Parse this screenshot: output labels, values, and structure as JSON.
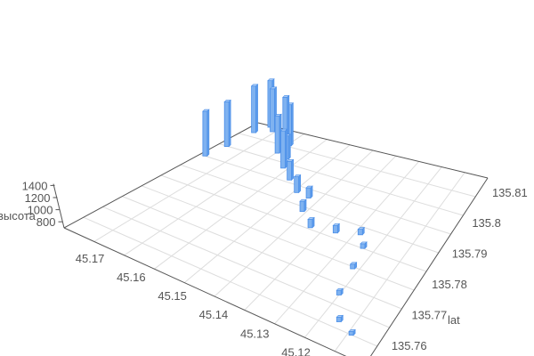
{
  "chart_data": {
    "type": "bar3d",
    "title": "",
    "x_axis": {
      "label": "",
      "ticks": [
        "45.17",
        "45.16",
        "45.15",
        "45.14",
        "45.13",
        "45.12"
      ],
      "range": [
        45.105,
        45.178
      ]
    },
    "y_axis": {
      "label": "lat",
      "ticks": [
        "135.76",
        "135.77",
        "135.78",
        "135.79",
        "135.8",
        "135.81"
      ],
      "range": [
        135.753,
        135.814
      ]
    },
    "z_axis": {
      "label": "высота",
      "ticks": [
        "800",
        "1000",
        "1200",
        "1400"
      ],
      "range": [
        700,
        1500
      ]
    },
    "grid": true,
    "bar_color": "#7fb2f0",
    "bar_edge_color": "#4a8ee8",
    "points": [
      {
        "x": 45.1765,
        "y": 135.7957,
        "z": 1438
      },
      {
        "x": 45.1756,
        "y": 135.8016,
        "z": 1438
      },
      {
        "x": 45.1751,
        "y": 135.8097,
        "z": 1469
      },
      {
        "x": 45.1736,
        "y": 135.8134,
        "z": 1469
      },
      {
        "x": 45.1714,
        "y": 135.8119,
        "z": 1408
      },
      {
        "x": 45.1637,
        "y": 135.8079,
        "z": 1500
      },
      {
        "x": 45.1628,
        "y": 135.8083,
        "z": 1377
      },
      {
        "x": 45.163,
        "y": 135.8045,
        "z": 1315
      },
      {
        "x": 45.1573,
        "y": 135.7999,
        "z": 1315
      },
      {
        "x": 45.1592,
        "y": 135.8033,
        "z": 1085
      },
      {
        "x": 45.1527,
        "y": 135.7966,
        "z": 1008
      },
      {
        "x": 45.148,
        "y": 135.7933,
        "z": 962
      },
      {
        "x": 45.1442,
        "y": 135.7928,
        "z": 869
      },
      {
        "x": 45.1424,
        "y": 135.788,
        "z": 869
      },
      {
        "x": 45.1373,
        "y": 135.784,
        "z": 838
      },
      {
        "x": 45.1311,
        "y": 135.7851,
        "z": 823
      },
      {
        "x": 45.1255,
        "y": 135.7871,
        "z": 792
      },
      {
        "x": 45.1225,
        "y": 135.7835,
        "z": 777
      },
      {
        "x": 45.1211,
        "y": 135.7768,
        "z": 777
      },
      {
        "x": 45.1196,
        "y": 135.7682,
        "z": 777
      },
      {
        "x": 45.1156,
        "y": 135.7611,
        "z": 777
      },
      {
        "x": 45.1114,
        "y": 135.759,
        "z": 762
      }
    ]
  }
}
